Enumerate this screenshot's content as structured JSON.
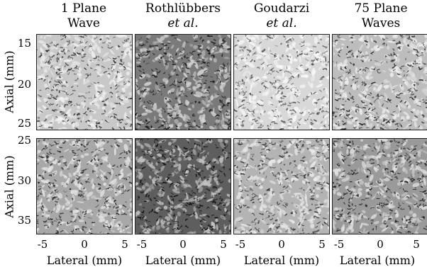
{
  "columns": [
    {
      "line1": "1 Plane",
      "line2": "Wave",
      "italic2": false
    },
    {
      "line1": "Rothlübbers",
      "line2": "et al.",
      "italic2": true
    },
    {
      "line1": "Goudarzi",
      "line2": "et al.",
      "italic2": true
    },
    {
      "line1": "75 Plane",
      "line2": "Waves",
      "italic2": false
    }
  ],
  "rows": [
    {
      "ylabel": "Axial (mm)",
      "ticks": [
        "15",
        "20",
        "25"
      ]
    },
    {
      "ylabel": "Axial (mm)",
      "ticks": [
        "25",
        "30",
        "35"
      ]
    }
  ],
  "xticks": [
    "-5",
    "0",
    "5"
  ],
  "xlabel": "Lateral (mm)",
  "panel_tones": [
    [
      {
        "base": "#c8c8c8",
        "dark": "#2a2a2a",
        "light": "#f2f2f2"
      },
      {
        "base": "#7a7a7a",
        "dark": "#101010",
        "light": "#d6d6d6"
      },
      {
        "base": "#d8d8d8",
        "dark": "#4a4a4a",
        "light": "#fafafa"
      },
      {
        "base": "#bdbdbd",
        "dark": "#262626",
        "light": "#f0f0f0"
      }
    ],
    [
      {
        "base": "#a8a8a8",
        "dark": "#1c1c1c",
        "light": "#e8e8e8"
      },
      {
        "base": "#5e5e5e",
        "dark": "#0a0a0a",
        "light": "#c8c8c8"
      },
      {
        "base": "#b4b4b4",
        "dark": "#303030",
        "light": "#ececec"
      },
      {
        "base": "#9a9a9a",
        "dark": "#181818",
        "light": "#e2e2e2"
      }
    ]
  ]
}
